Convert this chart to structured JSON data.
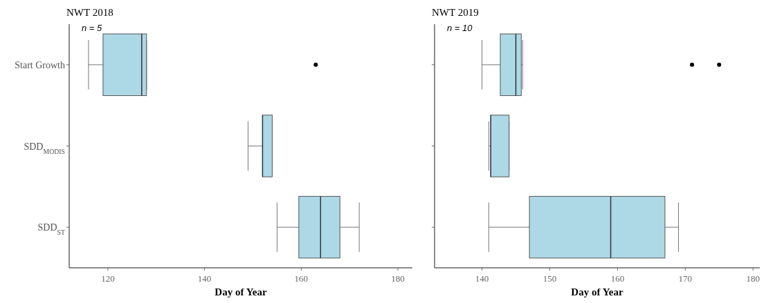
{
  "chart_data": [
    {
      "type": "box",
      "orientation": "horizontal",
      "title": "NWT 2018",
      "annotations": [
        "n = 5"
      ],
      "xlabel": "Day of Year",
      "categories": [
        "Start Growth",
        "SDD$_{MODIS}$",
        "SDD$_{ST}$"
      ],
      "xlim": [
        112,
        183
      ],
      "xticks": [
        120,
        140,
        160,
        180
      ],
      "series": [
        {
          "color": "#add8e6",
          "boxes": [
            {
              "low": 116,
              "q1": 119,
              "median": 127,
              "q3": 128,
              "high": 128,
              "outliers": [
                163
              ]
            },
            {
              "low": 149,
              "q1": 152,
              "median": 152,
              "q3": 154,
              "high": 154
            },
            {
              "low": 155,
              "q1": 159.5,
              "median": 164,
              "q3": 168,
              "high": 172
            }
          ]
        }
      ]
    },
    {
      "type": "box",
      "orientation": "horizontal",
      "title": "NWT 2019",
      "annotations": [
        "n = 10"
      ],
      "xlabel": "Day of Year",
      "categories": [
        null,
        null,
        null
      ],
      "tick_labels": "x",
      "xlim": [
        133,
        181
      ],
      "xticks": [
        140,
        150,
        160,
        170,
        180
      ],
      "series": [
        {
          "color": "#add8e6",
          "boxes": [
            {
              "low": 140,
              "q1": 142.7,
              "median": 145,
              "q3": 145.8,
              "high": 146,
              "outliers": [
                171,
                175
              ]
            },
            {
              "low": 141,
              "q1": 141.3,
              "median": 141.3,
              "q3": 144,
              "high": 144
            },
            {
              "low": 141,
              "q1": 147,
              "median": 159,
              "q3": 167,
              "high": 169
            }
          ]
        }
      ]
    }
  ]
}
